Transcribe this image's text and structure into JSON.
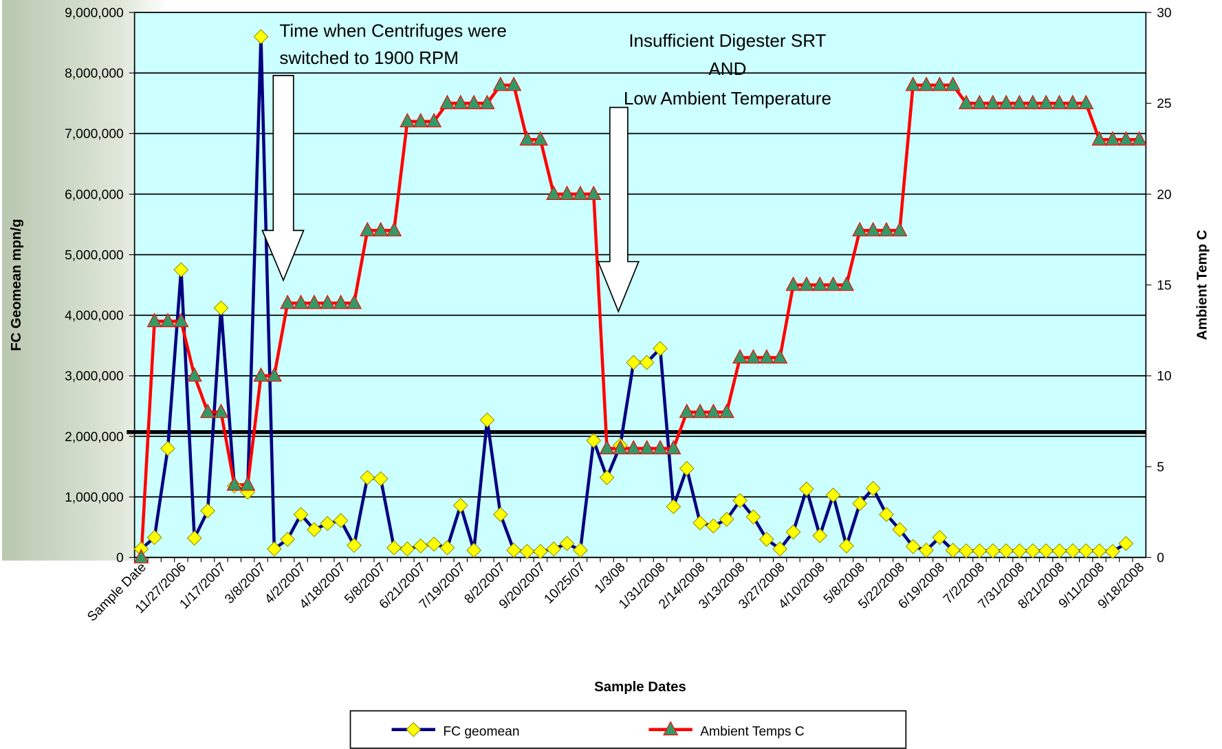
{
  "chart_data": {
    "type": "line",
    "x_label": "Sample Dates",
    "y_label": "FC Geomean mpn/g",
    "y2_label": "Ambient Temp C",
    "annotations": [
      [
        "Time when Centrifuges were",
        "switched to 1900 RPM"
      ],
      [
        "Insufficient Digester SRT",
        "AND",
        "Low Ambient Temperature"
      ]
    ],
    "categories": [
      "Sample Date",
      null,
      null,
      "11/27/2006",
      null,
      null,
      "1/17/2007",
      null,
      null,
      "3/8/2007",
      null,
      null,
      "4/2/2007",
      null,
      null,
      "4/18/2007",
      null,
      null,
      "5/8/2007",
      null,
      null,
      "6/21/2007",
      null,
      null,
      "7/19/2007",
      null,
      null,
      "8/2/2007",
      null,
      null,
      "9/20/2007",
      null,
      null,
      "10/25/07",
      null,
      null,
      "1/3/08",
      null,
      null,
      "1/31/2008",
      null,
      null,
      "2/14/2008",
      null,
      null,
      "3/13/2008",
      null,
      null,
      "3/27/2008",
      null,
      null,
      "4/10/2008",
      null,
      null,
      "5/8/2008",
      null,
      null,
      "5/22/2008",
      null,
      null,
      "6/19/2008",
      null,
      null,
      "7/2/2008",
      null,
      null,
      "7/31/2008",
      null,
      null,
      "8/21/2008",
      null,
      null,
      "9/11/2008",
      null,
      null,
      "9/18/2008"
    ],
    "series": [
      {
        "name": "FC geomean",
        "color": "#000080",
        "marker_color": "#ffff00",
        "marker": "diamond",
        "values": [
          140000,
          330000,
          1800000,
          4750000,
          320000,
          770000,
          4120000,
          1180000,
          1080000,
          8600000,
          140000,
          300000,
          710000,
          460000,
          560000,
          610000,
          200000,
          1320000,
          1300000,
          160000,
          140000,
          190000,
          220000,
          160000,
          860000,
          120000,
          2270000,
          710000,
          120000,
          100000,
          100000,
          140000,
          230000,
          120000,
          1930000,
          1320000,
          1850000,
          3220000,
          3220000,
          3450000,
          840000,
          1470000,
          570000,
          520000,
          630000,
          940000,
          670000,
          300000,
          140000,
          420000,
          1130000,
          360000,
          1030000,
          190000,
          890000,
          1140000,
          710000,
          460000,
          180000,
          120000,
          330000,
          120000,
          110000,
          110000,
          110000,
          110000,
          110000,
          110000,
          110000,
          110000,
          110000,
          110000,
          110000,
          100000,
          230000,
          null
        ]
      },
      {
        "name": "Ambient Temps C",
        "color": "#ff0000",
        "marker_color": "#339966",
        "marker": "triangle",
        "axis": "y2",
        "values": [
          0,
          13,
          13,
          13,
          10,
          8,
          8,
          4,
          4,
          10,
          10,
          14,
          14,
          14,
          14,
          14,
          14,
          18,
          18,
          18,
          24,
          24,
          24,
          25,
          25,
          25,
          25,
          26,
          26,
          23,
          23,
          20,
          20,
          20,
          20,
          6,
          6,
          6,
          6,
          6,
          6,
          8,
          8,
          8,
          8,
          11,
          11,
          11,
          11,
          15,
          15,
          15,
          15,
          15,
          18,
          18,
          18,
          18,
          26,
          26,
          26,
          26,
          25,
          25,
          25,
          25,
          25,
          25,
          25,
          25,
          25,
          25,
          23,
          23,
          23,
          23
        ]
      }
    ],
    "ylim": [
      0,
      9000000
    ],
    "yticks": [
      0,
      {
        "value": 1000000,
        "label": "1,000,000"
      },
      {
        "value": 2000000,
        "label": "2,000,000"
      },
      {
        "value": 3000000,
        "label": "3,000,000"
      },
      {
        "value": 4000000,
        "label": "4,000,000"
      },
      {
        "value": 5000000,
        "label": "5,000,000"
      },
      {
        "value": 6000000,
        "label": "6,000,000"
      },
      {
        "value": 7000000,
        "label": "7,000,000"
      },
      {
        "value": 8000000,
        "label": "8,000,000"
      },
      {
        "value": 9000000,
        "label": "9,000,000"
      }
    ],
    "y2lim": [
      0,
      30
    ],
    "y2ticks": [
      0,
      5,
      10,
      15,
      20,
      25,
      30
    ],
    "grid": true,
    "background": "#ccffff",
    "legend": "bottom"
  }
}
